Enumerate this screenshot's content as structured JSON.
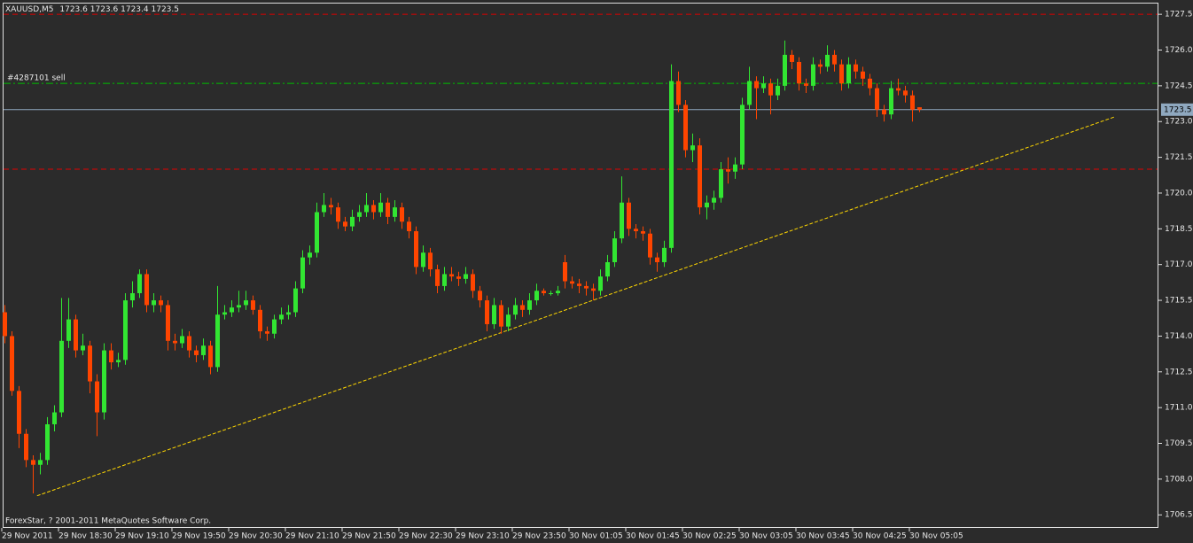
{
  "chart_data": {
    "type": "candlestick",
    "symbol": "XAUUSD,M5",
    "up_color": "#32e632",
    "down_color": "#ff4500",
    "categories": [
      "29 Nov 2011",
      null,
      null,
      null,
      null,
      null,
      null,
      null,
      "29 Nov 18:30",
      null,
      null,
      null,
      null,
      null,
      null,
      null,
      "29 Nov 19:10",
      null,
      null,
      null,
      null,
      null,
      null,
      null,
      "29 Nov 19:50",
      null,
      null,
      null,
      null,
      null,
      null,
      null,
      "29 Nov 20:30",
      null,
      null,
      null,
      null,
      null,
      null,
      null,
      "29 Nov 21:10",
      null,
      null,
      null,
      null,
      null,
      null,
      null,
      "29 Nov 21:50",
      null,
      null,
      null,
      null,
      null,
      null,
      null,
      "29 Nov 22:30",
      null,
      null,
      null,
      null,
      null,
      null,
      null,
      "29 Nov 23:10",
      null,
      null,
      null,
      null,
      null,
      null,
      null,
      "29 Nov 23:50",
      null,
      null,
      null,
      null,
      null,
      null,
      null,
      "30 Nov 01:05",
      null,
      null,
      null,
      null,
      null,
      null,
      null,
      "30 Nov 01:45",
      null,
      null,
      null,
      null,
      null,
      null,
      null,
      "30 Nov 02:25",
      null,
      null,
      null,
      null,
      null,
      null,
      null,
      "30 Nov 03:05",
      null,
      null,
      null,
      null,
      null,
      null,
      null,
      "30 Nov 03:45",
      null,
      null,
      null,
      null,
      null,
      null,
      null,
      "30 Nov 04:25",
      null,
      null,
      null,
      null,
      null,
      null,
      null,
      "30 Nov 05:05",
      null
    ],
    "ohlc": [
      [
        1715.0,
        1715.3,
        1713.7,
        1714.0
      ],
      [
        1714.0,
        1714.2,
        1711.5,
        1711.7
      ],
      [
        1711.7,
        1711.9,
        1709.3,
        1709.9
      ],
      [
        1709.9,
        1710.1,
        1708.5,
        1708.8
      ],
      [
        1708.8,
        1709.0,
        1707.4,
        1708.6
      ],
      [
        1708.6,
        1709.1,
        1708.2,
        1708.8
      ],
      [
        1708.8,
        1710.6,
        1708.6,
        1710.3
      ],
      [
        1710.3,
        1711.1,
        1710.0,
        1710.8
      ],
      [
        1710.8,
        1715.6,
        1710.6,
        1713.8
      ],
      [
        1713.8,
        1715.6,
        1713.5,
        1714.7
      ],
      [
        1714.7,
        1714.9,
        1713.1,
        1713.4
      ],
      [
        1713.4,
        1714.1,
        1713.2,
        1713.6
      ],
      [
        1713.6,
        1713.8,
        1711.6,
        1712.1
      ],
      [
        1712.1,
        1712.4,
        1709.8,
        1710.8
      ],
      [
        1710.8,
        1713.7,
        1710.5,
        1713.4
      ],
      [
        1713.4,
        1713.7,
        1712.6,
        1712.9
      ],
      [
        1712.9,
        1713.3,
        1712.7,
        1713.0
      ],
      [
        1713.0,
        1715.8,
        1712.8,
        1715.5
      ],
      [
        1715.5,
        1716.3,
        1715.2,
        1715.8
      ],
      [
        1715.8,
        1716.8,
        1715.6,
        1716.6
      ],
      [
        1716.6,
        1716.8,
        1715.0,
        1715.3
      ],
      [
        1715.3,
        1715.8,
        1715.0,
        1715.5
      ],
      [
        1715.5,
        1715.7,
        1715.0,
        1715.3
      ],
      [
        1715.3,
        1715.5,
        1713.4,
        1713.8
      ],
      [
        1713.8,
        1714.1,
        1713.4,
        1713.7
      ],
      [
        1713.7,
        1714.3,
        1713.5,
        1714.0
      ],
      [
        1714.0,
        1714.2,
        1713.1,
        1713.4
      ],
      [
        1713.4,
        1713.6,
        1712.9,
        1713.2
      ],
      [
        1713.2,
        1713.9,
        1713.0,
        1713.6
      ],
      [
        1713.6,
        1713.8,
        1712.4,
        1712.7
      ],
      [
        1712.7,
        1716.1,
        1712.5,
        1714.9
      ],
      [
        1714.9,
        1715.3,
        1714.7,
        1715.0
      ],
      [
        1715.0,
        1715.5,
        1714.8,
        1715.2
      ],
      [
        1715.2,
        1715.9,
        1715.0,
        1715.3
      ],
      [
        1715.3,
        1715.9,
        1715.1,
        1715.5
      ],
      [
        1715.5,
        1715.7,
        1714.9,
        1715.1
      ],
      [
        1715.1,
        1715.3,
        1713.9,
        1714.2
      ],
      [
        1714.2,
        1714.4,
        1713.8,
        1714.1
      ],
      [
        1714.1,
        1714.9,
        1713.9,
        1714.7
      ],
      [
        1714.7,
        1715.2,
        1714.5,
        1714.9
      ],
      [
        1714.9,
        1715.3,
        1714.7,
        1715.0
      ],
      [
        1715.0,
        1716.3,
        1714.8,
        1716.0
      ],
      [
        1716.0,
        1717.6,
        1715.8,
        1717.3
      ],
      [
        1717.3,
        1717.8,
        1717.0,
        1717.5
      ],
      [
        1717.5,
        1719.6,
        1717.3,
        1719.2
      ],
      [
        1719.2,
        1720.0,
        1719.0,
        1719.5
      ],
      [
        1719.5,
        1719.8,
        1719.1,
        1719.4
      ],
      [
        1719.4,
        1719.6,
        1718.5,
        1718.8
      ],
      [
        1718.8,
        1719.0,
        1718.4,
        1718.6
      ],
      [
        1718.6,
        1719.3,
        1718.4,
        1719.0
      ],
      [
        1719.0,
        1719.5,
        1718.8,
        1719.2
      ],
      [
        1719.2,
        1720.0,
        1719.0,
        1719.5
      ],
      [
        1719.5,
        1719.7,
        1718.9,
        1719.2
      ],
      [
        1719.2,
        1720.0,
        1719.0,
        1719.6
      ],
      [
        1719.6,
        1719.8,
        1718.7,
        1719.0
      ],
      [
        1719.0,
        1719.7,
        1718.8,
        1719.4
      ],
      [
        1719.4,
        1719.6,
        1718.5,
        1718.8
      ],
      [
        1718.8,
        1719.0,
        1718.1,
        1718.4
      ],
      [
        1718.4,
        1718.6,
        1716.6,
        1716.9
      ],
      [
        1716.9,
        1717.8,
        1716.7,
        1717.5
      ],
      [
        1717.5,
        1717.7,
        1716.5,
        1716.8
      ],
      [
        1716.8,
        1717.0,
        1715.8,
        1716.1
      ],
      [
        1716.1,
        1716.9,
        1715.9,
        1716.6
      ],
      [
        1716.6,
        1716.9,
        1716.3,
        1716.5
      ],
      [
        1716.5,
        1716.7,
        1716.1,
        1716.4
      ],
      [
        1716.4,
        1716.9,
        1716.2,
        1716.6
      ],
      [
        1716.6,
        1716.8,
        1715.6,
        1715.9
      ],
      [
        1715.9,
        1716.1,
        1715.2,
        1715.5
      ],
      [
        1715.5,
        1715.7,
        1714.2,
        1714.5
      ],
      [
        1714.5,
        1715.6,
        1714.3,
        1715.3
      ],
      [
        1715.3,
        1715.5,
        1714.1,
        1714.4
      ],
      [
        1714.4,
        1715.2,
        1714.2,
        1714.9
      ],
      [
        1714.9,
        1715.6,
        1714.7,
        1715.3
      ],
      [
        1715.3,
        1715.5,
        1714.8,
        1715.1
      ],
      [
        1715.1,
        1715.8,
        1714.9,
        1715.5
      ],
      [
        1715.5,
        1716.2,
        1715.3,
        1715.9
      ],
      [
        1715.9,
        1716.0,
        1715.7,
        1715.8
      ],
      [
        1715.8,
        1715.9,
        1715.7,
        1715.8
      ],
      [
        1715.8,
        1716.1,
        1715.7,
        1715.9
      ],
      [
        1717.1,
        1717.4,
        1716.0,
        1716.3
      ],
      [
        1716.3,
        1716.5,
        1716.0,
        1716.2
      ],
      [
        1716.2,
        1716.4,
        1715.8,
        1716.1
      ],
      [
        1716.1,
        1716.3,
        1715.7,
        1716.0
      ],
      [
        1716.0,
        1716.2,
        1715.5,
        1715.9
      ],
      [
        1715.9,
        1716.8,
        1715.7,
        1716.5
      ],
      [
        1716.5,
        1717.4,
        1716.3,
        1717.1
      ],
      [
        1717.1,
        1718.4,
        1716.9,
        1718.1
      ],
      [
        1718.1,
        1720.7,
        1717.9,
        1719.6
      ],
      [
        1719.6,
        1719.8,
        1718.2,
        1718.5
      ],
      [
        1718.5,
        1718.7,
        1718.1,
        1718.4
      ],
      [
        1718.4,
        1718.6,
        1718.0,
        1718.3
      ],
      [
        1718.3,
        1718.5,
        1717.0,
        1717.3
      ],
      [
        1717.3,
        1717.5,
        1716.7,
        1717.1
      ],
      [
        1717.1,
        1718.0,
        1716.9,
        1717.7
      ],
      [
        1717.7,
        1725.4,
        1717.5,
        1724.7
      ],
      [
        1724.7,
        1725.1,
        1723.4,
        1723.7
      ],
      [
        1723.7,
        1723.9,
        1721.5,
        1721.8
      ],
      [
        1721.8,
        1722.5,
        1721.3,
        1722.0
      ],
      [
        1722.0,
        1722.3,
        1719.1,
        1719.4
      ],
      [
        1719.4,
        1719.9,
        1718.9,
        1719.6
      ],
      [
        1719.6,
        1720.1,
        1719.3,
        1719.8
      ],
      [
        1719.8,
        1721.3,
        1719.6,
        1721.0
      ],
      [
        1721.0,
        1721.5,
        1720.4,
        1720.9
      ],
      [
        1720.9,
        1721.5,
        1720.6,
        1721.2
      ],
      [
        1721.2,
        1724.0,
        1721.0,
        1723.7
      ],
      [
        1723.7,
        1725.3,
        1723.5,
        1724.7
      ],
      [
        1724.7,
        1724.9,
        1723.1,
        1724.4
      ],
      [
        1724.4,
        1724.9,
        1724.2,
        1724.6
      ],
      [
        1724.6,
        1724.8,
        1723.3,
        1724.1
      ],
      [
        1724.1,
        1724.8,
        1723.9,
        1724.5
      ],
      [
        1724.5,
        1726.4,
        1724.3,
        1725.8
      ],
      [
        1725.8,
        1726.0,
        1725.2,
        1725.5
      ],
      [
        1725.5,
        1725.7,
        1724.3,
        1724.6
      ],
      [
        1724.6,
        1724.8,
        1724.2,
        1724.5
      ],
      [
        1724.5,
        1725.7,
        1724.3,
        1725.4
      ],
      [
        1725.4,
        1725.6,
        1725.0,
        1725.3
      ],
      [
        1725.3,
        1726.2,
        1725.1,
        1725.8
      ],
      [
        1725.8,
        1726.0,
        1725.1,
        1725.4
      ],
      [
        1725.4,
        1725.6,
        1724.3,
        1724.6
      ],
      [
        1724.6,
        1725.7,
        1724.4,
        1725.4
      ],
      [
        1725.4,
        1725.6,
        1724.8,
        1725.1
      ],
      [
        1725.1,
        1725.3,
        1724.5,
        1724.8
      ],
      [
        1724.8,
        1725.0,
        1724.1,
        1724.4
      ],
      [
        1724.4,
        1724.6,
        1723.2,
        1723.5
      ],
      [
        1723.5,
        1723.7,
        1723.0,
        1723.3
      ],
      [
        1723.3,
        1724.7,
        1723.1,
        1724.4
      ],
      [
        1724.4,
        1724.8,
        1724.1,
        1724.3
      ],
      [
        1724.3,
        1724.5,
        1723.8,
        1724.1
      ],
      [
        1724.1,
        1724.3,
        1723.0,
        1723.5
      ],
      [
        1723.6,
        1723.6,
        1723.4,
        1723.5
      ]
    ],
    "ylim": [
      1706.1,
      1728.1
    ],
    "yticks": [
      1727.5,
      {
        "value": 1726,
        "label": "1726.0"
      },
      1724.5,
      {
        "value": 1723,
        "label": "1723.0"
      },
      1721.5,
      {
        "value": 1720,
        "label": "1720.0"
      },
      1718.5,
      {
        "value": 1717,
        "label": "1717.0"
      },
      1715.5,
      {
        "value": 1714,
        "label": "1714.0"
      },
      1712.5,
      {
        "value": 1711,
        "label": "1711.0"
      },
      1709.5,
      {
        "value": 1708,
        "label": "1708.0"
      },
      1706.5
    ],
    "order_line": {
      "label": "#4287101 sell",
      "price": 1724.6,
      "color": "#00c000"
    },
    "stop_lines": {
      "prices": [
        1727.5,
        1721.0
      ],
      "color": "#e00000"
    },
    "bid": 1723.5,
    "bid_color": "#8fa8bf",
    "trendline": {
      "x": [
        4.6,
        156.6
      ],
      "y": [
        1707.3,
        1723.2
      ],
      "color": "#ffd700"
    },
    "copyright": "ForexStar, ? 2001-2011 MetaQuotes Software Corp."
  }
}
